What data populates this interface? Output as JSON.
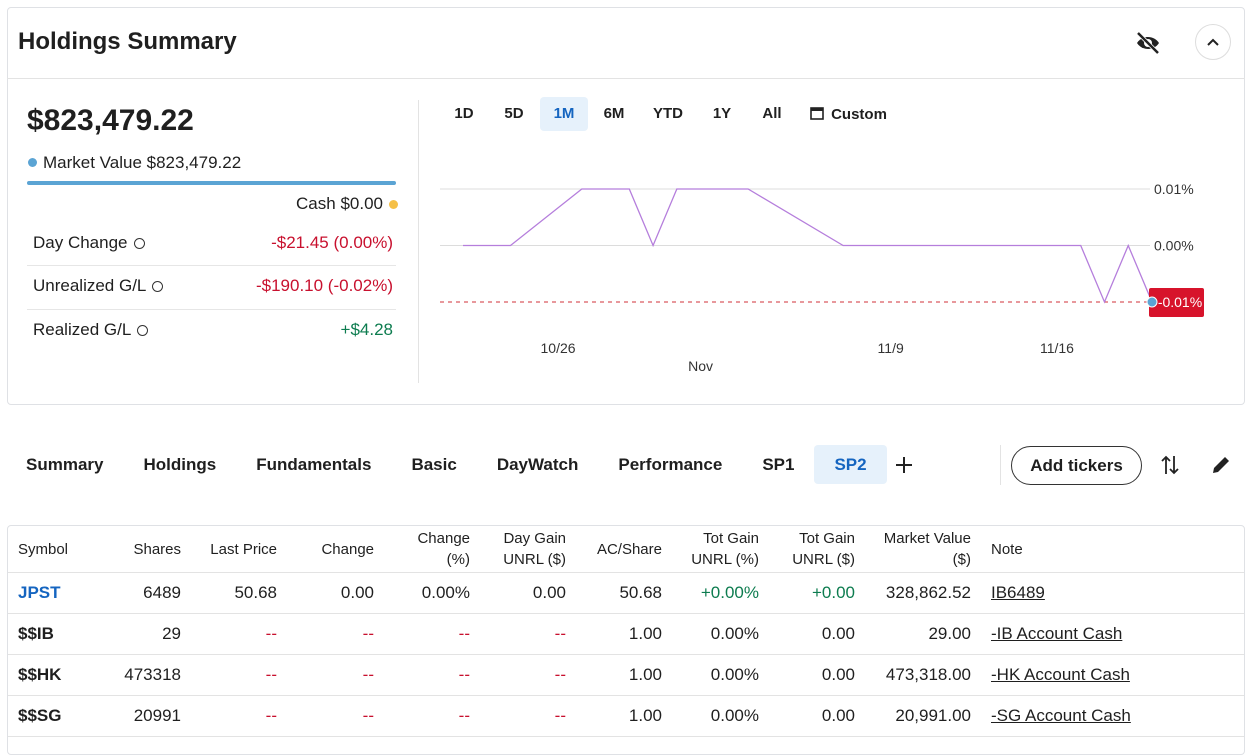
{
  "header": {
    "title": "Holdings Summary"
  },
  "summary": {
    "total": "$823,479.22",
    "market_value_label": "Market Value",
    "market_value": "$823,479.22",
    "cash_label": "Cash",
    "cash": "$0.00",
    "rows": [
      {
        "label": "Day Change",
        "value": "-$21.45 (0.00%)"
      },
      {
        "label": "Unrealized G/L",
        "value": "-$190.10 (-0.02%)"
      },
      {
        "label": "Realized G/L",
        "value": "+$4.28"
      }
    ]
  },
  "ranges": [
    "1D",
    "5D",
    "1M",
    "6M",
    "YTD",
    "1Y",
    "All",
    "Custom"
  ],
  "selected_range": "1M",
  "chart": {
    "type": "line",
    "color": "#b57edc",
    "x": [
      "10/22",
      "10/24",
      "10/27",
      "10/29",
      "10/30",
      "10/31",
      "11/3",
      "11/7",
      "11/17",
      "11/18",
      "11/19",
      "11/20"
    ],
    "values": [
      0,
      0,
      0.01,
      0.01,
      0,
      0.01,
      0.01,
      0,
      0,
      -0.01,
      0,
      -0.01
    ],
    "xlim": [
      "10/22",
      "11/20"
    ],
    "xticks": [
      "10/26",
      {
        "value": "11/1",
        "label": "Nov"
      },
      "11/9",
      "11/16"
    ],
    "ylim": [
      -0.01,
      0.01
    ],
    "yticks": [
      {
        "value": 0.01,
        "label": "0.01%"
      },
      {
        "value": 0,
        "label": "0.00%"
      }
    ],
    "last_label": "-0.01%",
    "grid": true
  },
  "tabs": [
    "Summary",
    "Holdings",
    "Fundamentals",
    "Basic",
    "DayWatch",
    "Performance",
    "SP1",
    "SP2"
  ],
  "selected_tab": "SP2",
  "add_button": "Add tickers",
  "table": {
    "columns": [
      "Symbol",
      "Shares",
      "Last Price",
      "Change",
      "Change (%)",
      "Day Gain\nUNRL ($)",
      "AC/Share",
      "Tot Gain\nUNRL (%)",
      "Tot Gain\nUNRL ($)",
      "Market Value\n($)",
      "Note"
    ],
    "rows": [
      [
        "JPST",
        "6489",
        "50.68",
        "0.00",
        "0.00%",
        "0.00",
        "50.68",
        "+0.00%",
        "+0.00",
        "328,862.52",
        "IB6489"
      ],
      [
        "$$IB",
        "29",
        "--",
        "--",
        "--",
        "--",
        "1.00",
        "0.00%",
        "0.00",
        "29.00",
        "-IB Account Cash"
      ],
      [
        "$$HK",
        "473318",
        "--",
        "--",
        "--",
        "--",
        "1.00",
        "0.00%",
        "0.00",
        "473,318.00",
        "-HK Account Cash"
      ],
      [
        "$$SG",
        "20991",
        "--",
        "--",
        "--",
        "--",
        "1.00",
        "0.00%",
        "0.00",
        "20,991.00",
        "-SG Account Cash"
      ]
    ]
  }
}
